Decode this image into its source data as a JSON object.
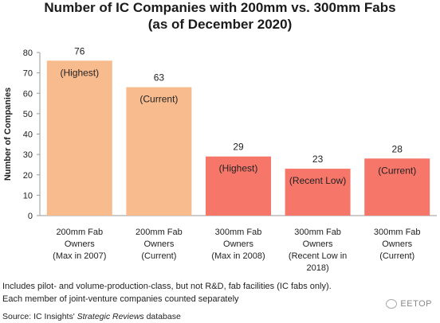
{
  "title_line1": "Number of IC Companies with 200mm vs. 300mm Fabs",
  "title_line2": "(as of December 2020)",
  "chart_data": {
    "type": "bar",
    "title": "Number of IC Companies with 200mm vs. 300mm Fabs (as of December 2020)",
    "ylabel": "Number of Companies",
    "ylim": [
      0,
      80
    ],
    "yticks": [
      0,
      10,
      20,
      30,
      40,
      50,
      60,
      70,
      80
    ],
    "grid": false,
    "legend": "none",
    "categories": [
      [
        "200mm Fab",
        "Owners",
        "(Max in 2007)"
      ],
      [
        "200mm Fab",
        "Owners",
        "(Current)"
      ],
      [
        "300mm Fab",
        "Owners",
        "(Max in 2008)"
      ],
      [
        "300mm Fab",
        "Owners",
        "(Recent Low in",
        "2018)"
      ],
      [
        "300mm Fab",
        "Owners",
        "(Current)"
      ]
    ],
    "values": [
      76,
      63,
      29,
      23,
      28
    ],
    "bar_labels": [
      "(Highest)",
      "(Current)",
      "(Highest)",
      "(Recent Low)",
      "(Current)"
    ],
    "bar_colors": [
      "#F8BB8E",
      "#F8BB8E",
      "#F6766A",
      "#F6766A",
      "#F6766A"
    ]
  },
  "notes": {
    "line1": "Includes pilot- and volume-production-class, but not R&D, fab facilities (IC fabs only).",
    "line2": "Each member of joint-venture companies counted separately"
  },
  "source": {
    "prefix": "Source:  IC Insights' ",
    "publication": "Strategic Reviews",
    "suffix": " database"
  },
  "watermark": "EETOP",
  "colors": {
    "bar_200mm": "#F8BB8E",
    "bar_300mm": "#F6766A",
    "axis": "#9a9a9a"
  }
}
